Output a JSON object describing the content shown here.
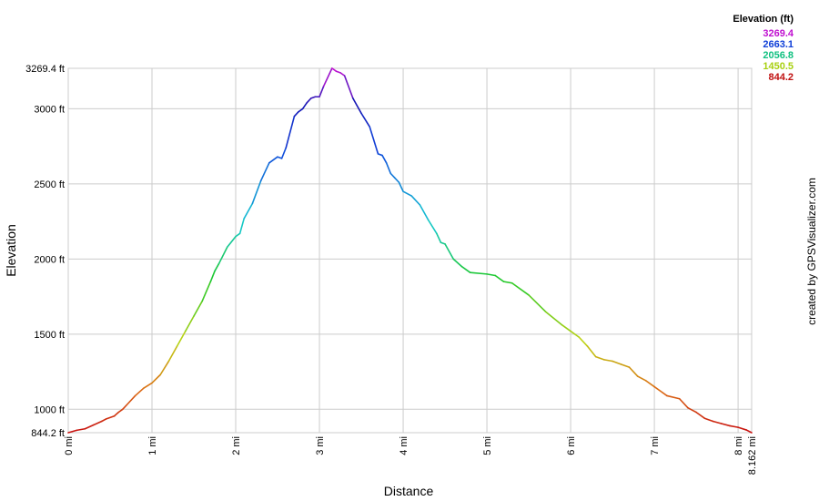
{
  "chart_data": {
    "type": "line",
    "xlabel": "Distance",
    "ylabel": "Elevation",
    "credit": "created by GPSVisualizer.com",
    "xlim": [
      0,
      8.162
    ],
    "ylim": [
      844.2,
      3269.4
    ],
    "x_ticks": [
      {
        "value": 0,
        "label": "0 mi"
      },
      {
        "value": 1,
        "label": "1 mi"
      },
      {
        "value": 2,
        "label": "2 mi"
      },
      {
        "value": 3,
        "label": "3 mi"
      },
      {
        "value": 4,
        "label": "4 mi"
      },
      {
        "value": 5,
        "label": "5 mi"
      },
      {
        "value": 6,
        "label": "6 mi"
      },
      {
        "value": 7,
        "label": "7 mi"
      },
      {
        "value": 8,
        "label": "8 mi"
      },
      {
        "value": 8.162,
        "label": "8.162 mi"
      }
    ],
    "y_ticks": [
      {
        "value": 844.2,
        "label": "844.2 ft"
      },
      {
        "value": 1000,
        "label": "1000 ft"
      },
      {
        "value": 1500,
        "label": "1500 ft"
      },
      {
        "value": 2000,
        "label": "2000 ft"
      },
      {
        "value": 2500,
        "label": "2500 ft"
      },
      {
        "value": 3000,
        "label": "3000 ft"
      },
      {
        "value": 3269.4,
        "label": "3269.4 ft"
      }
    ],
    "legend": {
      "title": "Elevation (ft)",
      "placement": "top-right",
      "entries": [
        {
          "label": "3269.4",
          "color": "#c010d0"
        },
        {
          "label": "2663.1",
          "color": "#1040d8"
        },
        {
          "label": "2056.8",
          "color": "#10c080"
        },
        {
          "label": "1450.5",
          "color": "#a8d010"
        },
        {
          "label": "844.2",
          "color": "#c01010"
        }
      ]
    },
    "grid": true,
    "series": [
      {
        "x": [
          0,
          0.1,
          0.2,
          0.3,
          0.4,
          0.45,
          0.55,
          0.6,
          0.65,
          0.7,
          0.8,
          0.9,
          1.0,
          1.1,
          1.2,
          1.3,
          1.4,
          1.5,
          1.6,
          1.7,
          1.75,
          1.8,
          1.9,
          2.0,
          2.05,
          2.1,
          2.2,
          2.3,
          2.4,
          2.5,
          2.55,
          2.6,
          2.7,
          2.75,
          2.8,
          2.85,
          2.9,
          2.95,
          3.0,
          3.05,
          3.15,
          3.2,
          3.25,
          3.3,
          3.4,
          3.5,
          3.6,
          3.7,
          3.75,
          3.8,
          3.85,
          3.9,
          3.95,
          4.0,
          4.1,
          4.2,
          4.3,
          4.4,
          4.45,
          4.5,
          4.6,
          4.7,
          4.8,
          5.0,
          5.1,
          5.2,
          5.3,
          5.5,
          5.7,
          5.9,
          6.0,
          6.1,
          6.2,
          6.3,
          6.4,
          6.5,
          6.6,
          6.7,
          6.8,
          6.9,
          7.0,
          7.1,
          7.15,
          7.3,
          7.4,
          7.5,
          7.6,
          7.7,
          7.8,
          7.9,
          8.0,
          8.1,
          8.162
        ],
        "y": [
          844.2,
          860,
          870,
          895,
          920,
          935,
          955,
          980,
          1000,
          1030,
          1090,
          1140,
          1175,
          1230,
          1320,
          1420,
          1520,
          1620,
          1720,
          1850,
          1920,
          1970,
          2080,
          2150,
          2170,
          2270,
          2370,
          2520,
          2640,
          2680,
          2670,
          2740,
          2950,
          2980,
          3000,
          3040,
          3070,
          3080,
          3080,
          3150,
          3269.4,
          3250,
          3240,
          3220,
          3070,
          2970,
          2880,
          2700,
          2690,
          2640,
          2570,
          2540,
          2510,
          2450,
          2420,
          2360,
          2260,
          2170,
          2110,
          2100,
          2000,
          1950,
          1910,
          1900,
          1890,
          1850,
          1840,
          1760,
          1650,
          1560,
          1520,
          1480,
          1420,
          1350,
          1330,
          1320,
          1300,
          1280,
          1220,
          1190,
          1150,
          1110,
          1090,
          1070,
          1010,
          980,
          940,
          920,
          905,
          890,
          880,
          862,
          844.2
        ]
      }
    ]
  }
}
